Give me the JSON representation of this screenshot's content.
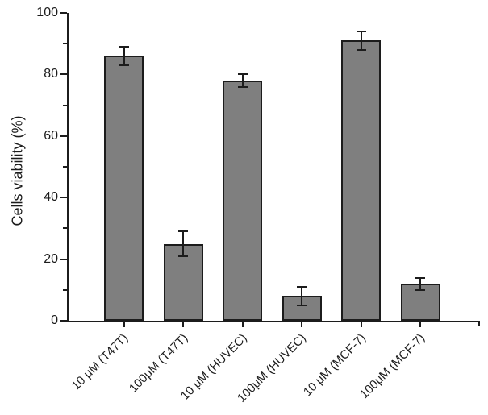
{
  "chart_data": {
    "type": "bar",
    "title": "",
    "xlabel": "",
    "ylabel": "Cells viability (%)",
    "categories": [
      "10 μM (T47T)",
      "100μM (T47T)",
      "10 μM (HUVEC)",
      "100μM (HUVEC)",
      "10 μM (MCF-7)",
      "100μM (MCF-7)"
    ],
    "values": [
      86,
      25,
      78,
      8,
      91,
      12
    ],
    "errors": [
      3,
      4,
      2,
      3,
      3,
      2
    ],
    "ylim": [
      0,
      100
    ],
    "yticks_major": [
      0,
      20,
      40,
      60,
      80,
      100
    ],
    "yticks_minor": [
      10,
      30,
      50,
      70,
      90
    ],
    "grid": false,
    "legend": "none",
    "colors": {
      "bar_fill": "#7f7f7f",
      "bar_border": "#1c1c1c",
      "axis": "#1c1c1c",
      "error_bar": "#1c1c1c",
      "background": "#ffffff"
    }
  }
}
